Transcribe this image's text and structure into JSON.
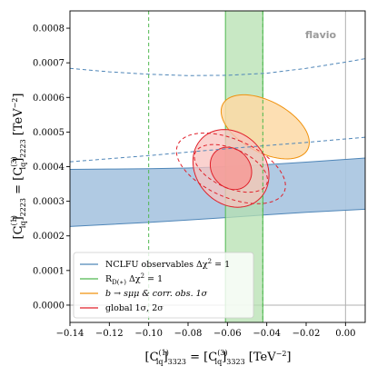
{
  "chart_data": {
    "type": "scatter",
    "subtype": "constraint-contour-plot",
    "brand": "flavio",
    "xlabel": "[C_lq^(1)]_3323 = [C_lq^(3)]_3323  [TeV^-2]",
    "ylabel": "[C_lq^(1)]_2223 = [C_lq^(3)]_2223  [TeV^-2]",
    "xlim": [
      -0.14,
      0.01
    ],
    "ylim": [
      -5e-05,
      0.00085
    ],
    "x_ticks": [
      -0.14,
      -0.12,
      -0.1,
      -0.08,
      -0.06,
      -0.04,
      -0.02,
      0.0
    ],
    "x_tick_labels": [
      "−0.14",
      "−0.12",
      "−0.10",
      "−0.08",
      "−0.06",
      "−0.04",
      "−0.02",
      "0.00"
    ],
    "y_ticks": [
      0.0,
      0.0001,
      0.0002,
      0.0003,
      0.0004,
      0.0005,
      0.0006,
      0.0007,
      0.0008
    ],
    "y_tick_labels": [
      "0.0000",
      "0.0001",
      "0.0002",
      "0.0003",
      "0.0004",
      "0.0005",
      "0.0006",
      "0.0007",
      "0.0008"
    ],
    "reference_lines": {
      "x": 0.0,
      "y": 0.0,
      "color": "#b0b0b0"
    },
    "legend": {
      "location": "lower left",
      "entries": [
        {
          "label": "NCLFU observables Δχ² = 1",
          "color": "#4f86b8"
        },
        {
          "label": "R_D(*) Δχ² = 1",
          "color": "#4fb84f"
        },
        {
          "label": "b → sμμ & corr. obs. 1σ",
          "color": "#f0920e"
        },
        {
          "label": "global 1σ, 2σ",
          "color": "#e0202a"
        }
      ]
    },
    "series": [
      {
        "name": "NCLFU observables Δχ² = 1",
        "kind": "band",
        "fill": "#a7c4e0",
        "edge": "#4f86b8",
        "x": [
          -0.14,
          -0.12,
          -0.1,
          -0.08,
          -0.06,
          -0.04,
          -0.02,
          0.0,
          0.01
        ],
        "upper": [
          0.000392,
          0.000393,
          0.000394,
          0.000396,
          0.0004,
          0.000406,
          0.000413,
          0.000421,
          0.000425
        ],
        "lower": [
          0.000227,
          0.000233,
          0.000239,
          0.000246,
          0.000253,
          0.000261,
          0.000268,
          0.000274,
          0.000277
        ],
        "dashed_upper": [
          0.000684,
          0.000674,
          0.000667,
          0.000663,
          0.000664,
          0.00067,
          0.000684,
          0.000702,
          0.000712
        ],
        "dashed_lower": [
          0.000414,
          0.000423,
          0.000432,
          0.000442,
          0.000452,
          0.000461,
          0.00047,
          0.00048,
          0.000485
        ]
      },
      {
        "name": "R_D(*) Δχ² = 1",
        "kind": "vertical-band",
        "fill": "#b6e0b0",
        "edge": "#4fb84f",
        "x_range": [
          -0.061,
          -0.042
        ],
        "dashed_x": [
          -0.1,
          -0.042
        ]
      },
      {
        "name": "b → sμμ & corr. obs. 1σ",
        "kind": "ellipse",
        "fill": "#fdd9a6",
        "edge": "#f0920e",
        "center": [
          -0.0408,
          0.000515
        ],
        "semi_axes": [
          0.0125,
          0.000145
        ],
        "angle_deg": 64
      },
      {
        "name": "global 1σ, 2σ",
        "kind": "ellipse",
        "fill_2sigma": "#f8c3bf",
        "fill_1sigma": "#f69b98",
        "edge": "#e0202a",
        "center": [
          -0.0582,
          0.000395
        ],
        "sigma1_semi_axes": [
          0.0094,
          6.75e-05
        ],
        "sigma2_semi_axes": [
          0.0172,
          0.000124
        ],
        "angle_deg": 50,
        "dashed_sigma1_semi_axes": [
          0.0095,
          0.000118
        ],
        "dashed_sigma2_semi_axes": [
          0.014,
          0.000176
        ],
        "dashed_angle_deg": 68
      }
    ]
  }
}
